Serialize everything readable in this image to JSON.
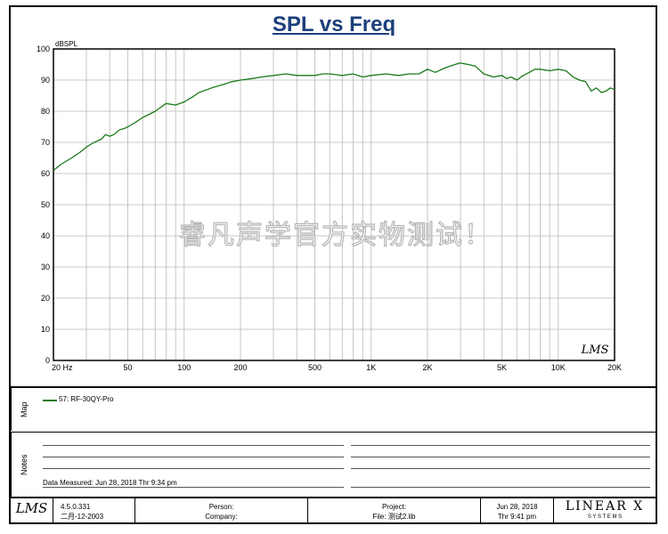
{
  "title": "SPL vs Freq",
  "watermark": "睿凡声学官方实物测试！",
  "chart_data": {
    "type": "line",
    "ylabel": "dBSPL",
    "xscale": "log",
    "xlim": [
      20,
      20000
    ],
    "ylim": [
      0,
      100
    ],
    "yticks": [
      0,
      10,
      20,
      30,
      40,
      50,
      60,
      70,
      80,
      90,
      100
    ],
    "xticks": [
      {
        "value": 20,
        "label": "20  Hz"
      },
      {
        "value": 50,
        "label": "50"
      },
      {
        "value": 100,
        "label": "100"
      },
      {
        "value": 200,
        "label": "200"
      },
      {
        "value": 500,
        "label": "500"
      },
      {
        "value": 1000,
        "label": "1K"
      },
      {
        "value": 2000,
        "label": "2K"
      },
      {
        "value": 5000,
        "label": "5K"
      },
      {
        "value": 10000,
        "label": "10K"
      },
      {
        "value": 20000,
        "label": "20K"
      }
    ],
    "grid": true,
    "series": [
      {
        "name": "57: RF-30QY-Pro",
        "color": "#1a7a1a",
        "x": [
          20,
          22,
          25,
          28,
          30,
          33,
          36,
          38,
          40,
          42,
          45,
          48,
          50,
          55,
          60,
          65,
          70,
          80,
          90,
          100,
          110,
          120,
          140,
          160,
          180,
          200,
          230,
          260,
          300,
          350,
          400,
          450,
          500,
          550,
          600,
          700,
          800,
          900,
          1000,
          1200,
          1400,
          1600,
          1800,
          2000,
          2200,
          2500,
          2800,
          3000,
          3300,
          3600,
          4000,
          4500,
          5000,
          5300,
          5600,
          6000,
          6500,
          7000,
          7500,
          8000,
          9000,
          10000,
          11000,
          12000,
          13000,
          14000,
          15000,
          16000,
          17000,
          18000,
          19000,
          20000
        ],
        "y": [
          61,
          63,
          65,
          67,
          68.5,
          70,
          71,
          72.5,
          72,
          72.5,
          74,
          74.5,
          75,
          76.5,
          78,
          79,
          80,
          82.5,
          82,
          83,
          84.5,
          86,
          87.5,
          88.5,
          89.5,
          90,
          90.5,
          91,
          91.5,
          92,
          91.5,
          91.5,
          91.5,
          92,
          92,
          91.5,
          92,
          91,
          91.5,
          92,
          91.5,
          92,
          92,
          93.5,
          92.5,
          94,
          95,
          95.5,
          95,
          94.5,
          92,
          91,
          91.5,
          90.5,
          91,
          90,
          91.5,
          92.5,
          93.5,
          93.5,
          93,
          93.5,
          93,
          91,
          90,
          89.5,
          86.5,
          87.5,
          86,
          86.5,
          87.5,
          87
        ]
      }
    ]
  },
  "map": {
    "label": "Map",
    "legend": "57: RF-30QY-Pro"
  },
  "notes": {
    "label": "Notes",
    "data_measured": "Data Measured: Jun 28, 2018  Thr  9:34 pm"
  },
  "footer": {
    "lms_logo": "LMS",
    "version": "4.5.0.331",
    "version_date": "二月-12-2003",
    "person": "Person:",
    "company": "Company:",
    "project": "Project:",
    "file": "File: 测试2.lib",
    "date": "Jun 28, 2018",
    "time": "Thr  9:41 pm",
    "brand": "LINEAR X",
    "brand_sub": "S Y S T E M S"
  },
  "plot_logo": "LMS"
}
